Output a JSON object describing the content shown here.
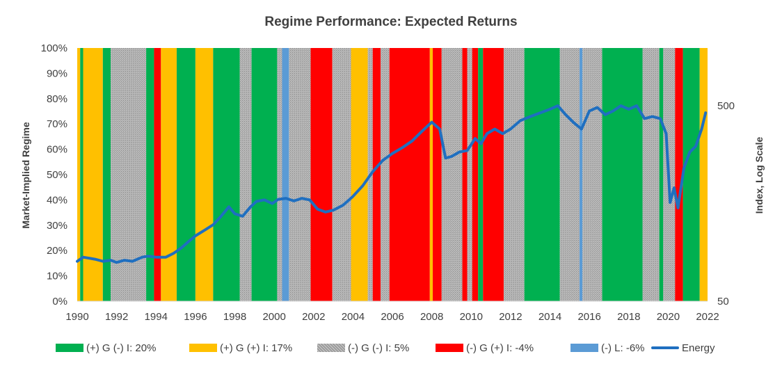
{
  "chart_data": {
    "type": "area",
    "title": "Regime Performance: Expected Returns",
    "ylabel": "Market-Implied Regime",
    "y2label": "Index, Log Scale",
    "xlim": [
      1990,
      2022
    ],
    "ylim": [
      0,
      100
    ],
    "y2lim": [
      50,
      500
    ],
    "y2scale": "log",
    "x_ticks": [
      "1990",
      "1992",
      "1994",
      "1996",
      "1998",
      "2000",
      "2002",
      "2004",
      "2006",
      "2008",
      "2010",
      "2012",
      "2014",
      "2016",
      "2018",
      "2020",
      "2022"
    ],
    "y_ticks": [
      "0%",
      "10%",
      "20%",
      "30%",
      "40%",
      "50%",
      "60%",
      "70%",
      "80%",
      "90%",
      "100%"
    ],
    "y2_ticks": [
      "50",
      "500"
    ],
    "regimes": [
      {
        "key": "g_neg_i",
        "label": "(+) G (-) I: 20%",
        "color": "#00b050"
      },
      {
        "key": "g_pos_i",
        "label": "(+) G (+) I: 17%",
        "color": "#ffc000"
      },
      {
        "key": "neg_g_neg_i",
        "label": "(-) G (-) I: 5%",
        "color": "#a6a6a6"
      },
      {
        "key": "neg_g_pos_i",
        "label": "(-) G (+) I: -4%",
        "color": "#ff0000"
      },
      {
        "key": "neg_l",
        "label": "(-) L: -6%",
        "color": "#5b9bd5"
      }
    ],
    "regime_periods": [
      {
        "start": 1990.0,
        "end": 1990.15,
        "regime": "g_pos_i"
      },
      {
        "start": 1990.15,
        "end": 1990.3,
        "regime": "g_neg_i"
      },
      {
        "start": 1990.3,
        "end": 1991.3,
        "regime": "g_pos_i"
      },
      {
        "start": 1991.3,
        "end": 1991.7,
        "regime": "g_neg_i"
      },
      {
        "start": 1991.7,
        "end": 1993.5,
        "regime": "neg_g_neg_i"
      },
      {
        "start": 1993.5,
        "end": 1993.9,
        "regime": "g_neg_i"
      },
      {
        "start": 1993.9,
        "end": 1994.25,
        "regime": "neg_g_pos_i"
      },
      {
        "start": 1994.25,
        "end": 1995.05,
        "regime": "g_pos_i"
      },
      {
        "start": 1995.05,
        "end": 1996.0,
        "regime": "g_neg_i"
      },
      {
        "start": 1996.0,
        "end": 1996.9,
        "regime": "g_pos_i"
      },
      {
        "start": 1996.9,
        "end": 1998.25,
        "regime": "g_neg_i"
      },
      {
        "start": 1998.25,
        "end": 1998.85,
        "regime": "neg_g_neg_i"
      },
      {
        "start": 1998.85,
        "end": 2000.15,
        "regime": "g_neg_i"
      },
      {
        "start": 2000.15,
        "end": 2000.4,
        "regime": "neg_g_neg_i"
      },
      {
        "start": 2000.4,
        "end": 2000.75,
        "regime": "neg_l"
      },
      {
        "start": 2000.75,
        "end": 2001.85,
        "regime": "neg_g_neg_i"
      },
      {
        "start": 2001.85,
        "end": 2002.95,
        "regime": "neg_g_pos_i"
      },
      {
        "start": 2002.95,
        "end": 2003.9,
        "regime": "neg_g_neg_i"
      },
      {
        "start": 2003.9,
        "end": 2004.75,
        "regime": "g_pos_i"
      },
      {
        "start": 2004.75,
        "end": 2005.0,
        "regime": "neg_g_neg_i"
      },
      {
        "start": 2005.0,
        "end": 2005.4,
        "regime": "neg_g_pos_i"
      },
      {
        "start": 2005.4,
        "end": 2005.85,
        "regime": "neg_g_neg_i"
      },
      {
        "start": 2005.85,
        "end": 2007.9,
        "regime": "neg_g_pos_i"
      },
      {
        "start": 2007.9,
        "end": 2008.05,
        "regime": "g_pos_i"
      },
      {
        "start": 2008.05,
        "end": 2008.5,
        "regime": "neg_g_pos_i"
      },
      {
        "start": 2008.5,
        "end": 2009.55,
        "regime": "neg_g_neg_i"
      },
      {
        "start": 2009.55,
        "end": 2009.8,
        "regime": "neg_g_pos_i"
      },
      {
        "start": 2009.8,
        "end": 2010.05,
        "regime": "neg_g_neg_i"
      },
      {
        "start": 2010.05,
        "end": 2010.35,
        "regime": "neg_g_pos_i"
      },
      {
        "start": 2010.35,
        "end": 2010.6,
        "regime": "g_neg_i"
      },
      {
        "start": 2010.6,
        "end": 2011.65,
        "regime": "neg_g_pos_i"
      },
      {
        "start": 2011.65,
        "end": 2012.7,
        "regime": "neg_g_neg_i"
      },
      {
        "start": 2012.7,
        "end": 2014.5,
        "regime": "g_neg_i"
      },
      {
        "start": 2014.5,
        "end": 2015.5,
        "regime": "neg_g_neg_i"
      },
      {
        "start": 2015.5,
        "end": 2015.65,
        "regime": "neg_l"
      },
      {
        "start": 2015.65,
        "end": 2016.65,
        "regime": "neg_g_neg_i"
      },
      {
        "start": 2016.65,
        "end": 2018.7,
        "regime": "g_neg_i"
      },
      {
        "start": 2018.7,
        "end": 2019.55,
        "regime": "neg_g_neg_i"
      },
      {
        "start": 2019.55,
        "end": 2019.75,
        "regime": "g_neg_i"
      },
      {
        "start": 2019.75,
        "end": 2020.35,
        "regime": "neg_g_neg_i"
      },
      {
        "start": 2020.35,
        "end": 2020.75,
        "regime": "neg_g_pos_i"
      },
      {
        "start": 2020.75,
        "end": 2021.6,
        "regime": "g_neg_i"
      },
      {
        "start": 2021.6,
        "end": 2022.0,
        "regime": "g_pos_i"
      }
    ],
    "series": [
      {
        "name": "Energy",
        "color": "#1f6fc0",
        "x": [
          1990.0,
          1990.3,
          1990.6,
          1990.9,
          1991.3,
          1991.7,
          1992.0,
          1992.4,
          1992.8,
          1993.3,
          1993.6,
          1994.0,
          1994.5,
          1994.9,
          1995.3,
          1995.7,
          1996.0,
          1996.5,
          1996.9,
          1997.3,
          1997.7,
          1998.0,
          1998.4,
          1998.8,
          1999.1,
          1999.5,
          1999.9,
          2000.2,
          2000.6,
          2001.0,
          2001.4,
          2001.8,
          2002.2,
          2002.6,
          2003.0,
          2003.5,
          2004.0,
          2004.5,
          2005.0,
          2005.5,
          2006.0,
          2006.5,
          2007.0,
          2007.5,
          2008.0,
          2008.4,
          2008.7,
          2009.0,
          2009.4,
          2009.8,
          2010.2,
          2010.5,
          2010.8,
          2011.2,
          2011.6,
          2012.0,
          2012.5,
          2013.0,
          2013.5,
          2014.0,
          2014.4,
          2014.8,
          2015.2,
          2015.6,
          2016.0,
          2016.4,
          2016.8,
          2017.2,
          2017.6,
          2018.0,
          2018.4,
          2018.8,
          2019.2,
          2019.6,
          2019.9,
          2020.1,
          2020.3,
          2020.5,
          2020.8,
          2021.1,
          2021.4,
          2021.7,
          2021.9
        ],
        "values": [
          80,
          84,
          83,
          82,
          80,
          81,
          79,
          81,
          80,
          84,
          85,
          84,
          84,
          88,
          94,
          102,
          108,
          116,
          123,
          136,
          152,
          140,
          136,
          152,
          162,
          165,
          158,
          166,
          168,
          163,
          168,
          165,
          148,
          143,
          146,
          155,
          172,
          195,
          230,
          262,
          285,
          305,
          330,
          370,
          412,
          380,
          270,
          275,
          290,
          295,
          340,
          320,
          360,
          380,
          360,
          380,
          420,
          440,
          460,
          480,
          500,
          450,
          410,
          380,
          470,
          490,
          450,
          470,
          500,
          480,
          500,
          430,
          440,
          430,
          360,
          160,
          190,
          150,
          240,
          290,
          310,
          380,
          460
        ]
      }
    ]
  }
}
